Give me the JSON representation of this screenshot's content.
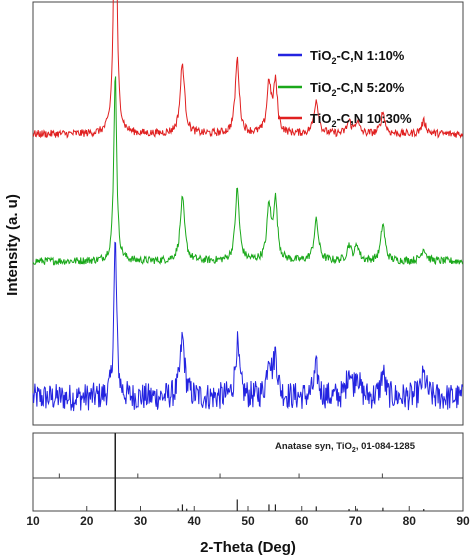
{
  "chart_data": {
    "type": "line",
    "title": "",
    "xlabel": "2-Theta (Deg)",
    "ylabel": "Intensity (a. u)",
    "xlim": [
      10,
      90
    ],
    "x_ticks": [
      10,
      20,
      30,
      40,
      50,
      60,
      70,
      80,
      90
    ],
    "legend_position": "top-right",
    "grid": false,
    "peaks_2theta": [
      25.3,
      37.8,
      48.0,
      53.9,
      55.1,
      62.7,
      68.8,
      70.3,
      75.1,
      82.7
    ],
    "series": [
      {
        "name": "TiO2-C,N 1:10%",
        "name_main": "TiO",
        "name_sub": "2",
        "name_rest": "-C,N  1:10%",
        "color": "#2323e0",
        "baseline": 0.08,
        "noise": 0.09,
        "peak_heights": [
          1.0,
          0.38,
          0.34,
          0.26,
          0.26,
          0.18,
          0.18,
          0.16,
          0.16,
          0.14
        ]
      },
      {
        "name": "TiO2-C,N 5:20%",
        "name_main": "TiO",
        "name_sub": "2",
        "name_rest": "-C,N  5:20%",
        "color": "#1aa81a",
        "baseline": 0.96,
        "noise": 0.025,
        "peak_heights": [
          1.22,
          0.4,
          0.46,
          0.34,
          0.38,
          0.26,
          0.1,
          0.1,
          0.24,
          0.08
        ]
      },
      {
        "name": "TiO2-C,N 10:30%",
        "name_main": "TiO",
        "name_sub": "2",
        "name_rest": "-C,N  10:30%",
        "color": "#e02020",
        "baseline": 1.78,
        "noise": 0.025,
        "peak_heights": [
          2.0,
          0.45,
          0.48,
          0.32,
          0.32,
          0.22,
          0.08,
          0.08,
          0.14,
          0.08
        ]
      }
    ],
    "reference": {
      "label_main": "Anatase syn, TiO",
      "label_sub": "2",
      "label_rest": ", 01-084-1285",
      "sticks": [
        {
          "x": 25.3,
          "intensity": 100
        },
        {
          "x": 37.0,
          "intensity": 8
        },
        {
          "x": 37.8,
          "intensity": 20
        },
        {
          "x": 38.6,
          "intensity": 7
        },
        {
          "x": 48.0,
          "intensity": 35
        },
        {
          "x": 53.9,
          "intensity": 20
        },
        {
          "x": 55.1,
          "intensity": 20
        },
        {
          "x": 62.7,
          "intensity": 14
        },
        {
          "x": 68.8,
          "intensity": 6
        },
        {
          "x": 70.3,
          "intensity": 7
        },
        {
          "x": 75.1,
          "intensity": 10
        },
        {
          "x": 82.7,
          "intensity": 6
        }
      ],
      "markers_upper": [
        {
          "x": 14.9,
          "level": 0.1
        },
        {
          "x": 29.5,
          "level": 0.1
        },
        {
          "x": 44.8,
          "level": 0.1
        },
        {
          "x": 59.5,
          "level": 0.1
        },
        {
          "x": 75.0,
          "level": 0.1
        }
      ]
    }
  }
}
